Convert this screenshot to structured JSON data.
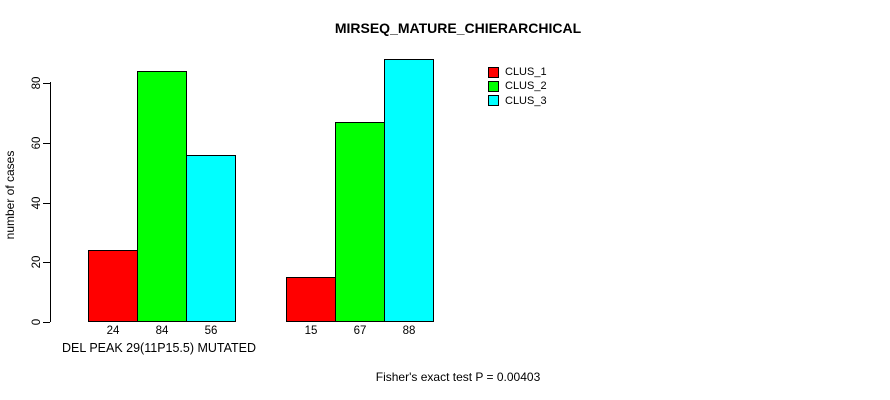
{
  "chart_data": {
    "type": "bar",
    "title": "MIRSEQ_MATURE_CHIERARCHICAL",
    "ylabel": "number of cases",
    "xlabel": "DEL PEAK 29(11P15.5) MUTATED",
    "annotation": "Fisher's exact test P = 0.00403",
    "yticks": [
      0,
      20,
      40,
      60,
      80
    ],
    "ylim": [
      0,
      88
    ],
    "grid": false,
    "background_color": "#ffffff",
    "axis_color": "#000000",
    "value_labels_shown": true,
    "legend_position": "top-right",
    "group_count": 2,
    "series": [
      {
        "name": "CLUS_1",
        "color": "#ff0000",
        "values": [
          24,
          15
        ]
      },
      {
        "name": "CLUS_2",
        "color": "#00ff00",
        "values": [
          84,
          67
        ]
      },
      {
        "name": "CLUS_3",
        "color": "#00ffff",
        "values": [
          56,
          88
        ]
      }
    ]
  }
}
